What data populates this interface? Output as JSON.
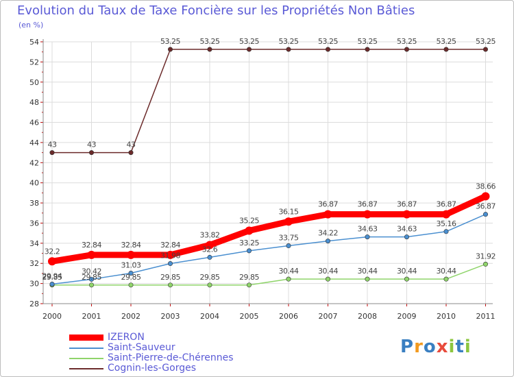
{
  "chart_data": {
    "type": "line",
    "title": "Evolution du Taux de Taxe Foncière sur les Propriétés Non Bâties",
    "unit_label": "(en %)",
    "categories": [
      "2000",
      "2001",
      "2002",
      "2003",
      "2004",
      "2005",
      "2006",
      "2007",
      "2008",
      "2009",
      "2010",
      "2011"
    ],
    "ylim": [
      28,
      54
    ],
    "y_ticks": [
      "28",
      "30",
      "32",
      "34",
      "36",
      "38",
      "40",
      "42",
      "44",
      "46",
      "48",
      "50",
      "52",
      "54"
    ],
    "series": [
      {
        "name": "Cognin-les-Gorges",
        "color": "#6b2a2a",
        "values": [
          43,
          43,
          43,
          53.25,
          53.25,
          53.25,
          53.25,
          53.25,
          53.25,
          53.25,
          53.25,
          53.25
        ],
        "labels": [
          "43",
          "43",
          "43",
          "53.25",
          "53.25",
          "53.25",
          "53.25",
          "53.25",
          "53.25",
          "53.25",
          "53.25",
          "53.25"
        ]
      },
      {
        "name": "Saint-Pierre-de-Chérennes",
        "color": "#8fd46a",
        "values": [
          29.85,
          29.85,
          29.85,
          29.85,
          29.85,
          29.85,
          30.44,
          30.44,
          30.44,
          30.44,
          30.44,
          31.92
        ],
        "labels": [
          "29.85",
          "29.85",
          "29.85",
          "29.85",
          "29.85",
          "29.85",
          "30.44",
          "30.44",
          "30.44",
          "30.44",
          "30.44",
          "31.92"
        ]
      },
      {
        "name": "Saint-Sauveur",
        "color": "#4a8fd0",
        "values": [
          29.94,
          30.42,
          31.03,
          31.98,
          32.6,
          33.25,
          33.75,
          34.22,
          34.63,
          34.63,
          35.16,
          36.87
        ],
        "labels": [
          "29.94",
          "30.42",
          "31.03",
          "31.98",
          "32.6",
          "33.25",
          "33.75",
          "34.22",
          "34.63",
          "34.63",
          "35.16",
          "36.87"
        ]
      },
      {
        "name": "IZERON",
        "color": "#ff0000",
        "values": [
          32.2,
          32.84,
          32.84,
          32.84,
          33.82,
          35.25,
          36.15,
          36.87,
          36.87,
          36.87,
          36.87,
          38.66
        ],
        "labels": [
          "32.2",
          "32.84",
          "32.84",
          "32.84",
          "33.82",
          "35.25",
          "36.15",
          "36.87",
          "36.87",
          "36.87",
          "36.87",
          "38.66"
        ]
      }
    ],
    "legend_order": [
      "IZERON",
      "Saint-Sauveur",
      "Saint-Pierre-de-Chérennes",
      "Cognin-les-Gorges"
    ],
    "legend_position": "bottom-left"
  },
  "logo": {
    "text": "Proxiti",
    "letters": [
      "P",
      "r",
      "o",
      "x",
      "i",
      "t",
      "i"
    ],
    "colors": [
      "#3a7fc1",
      "#f29a1f",
      "#3a7fc1",
      "#e84b3c",
      "#8cc63f",
      "#3a7fc1",
      "#8cc63f"
    ]
  }
}
